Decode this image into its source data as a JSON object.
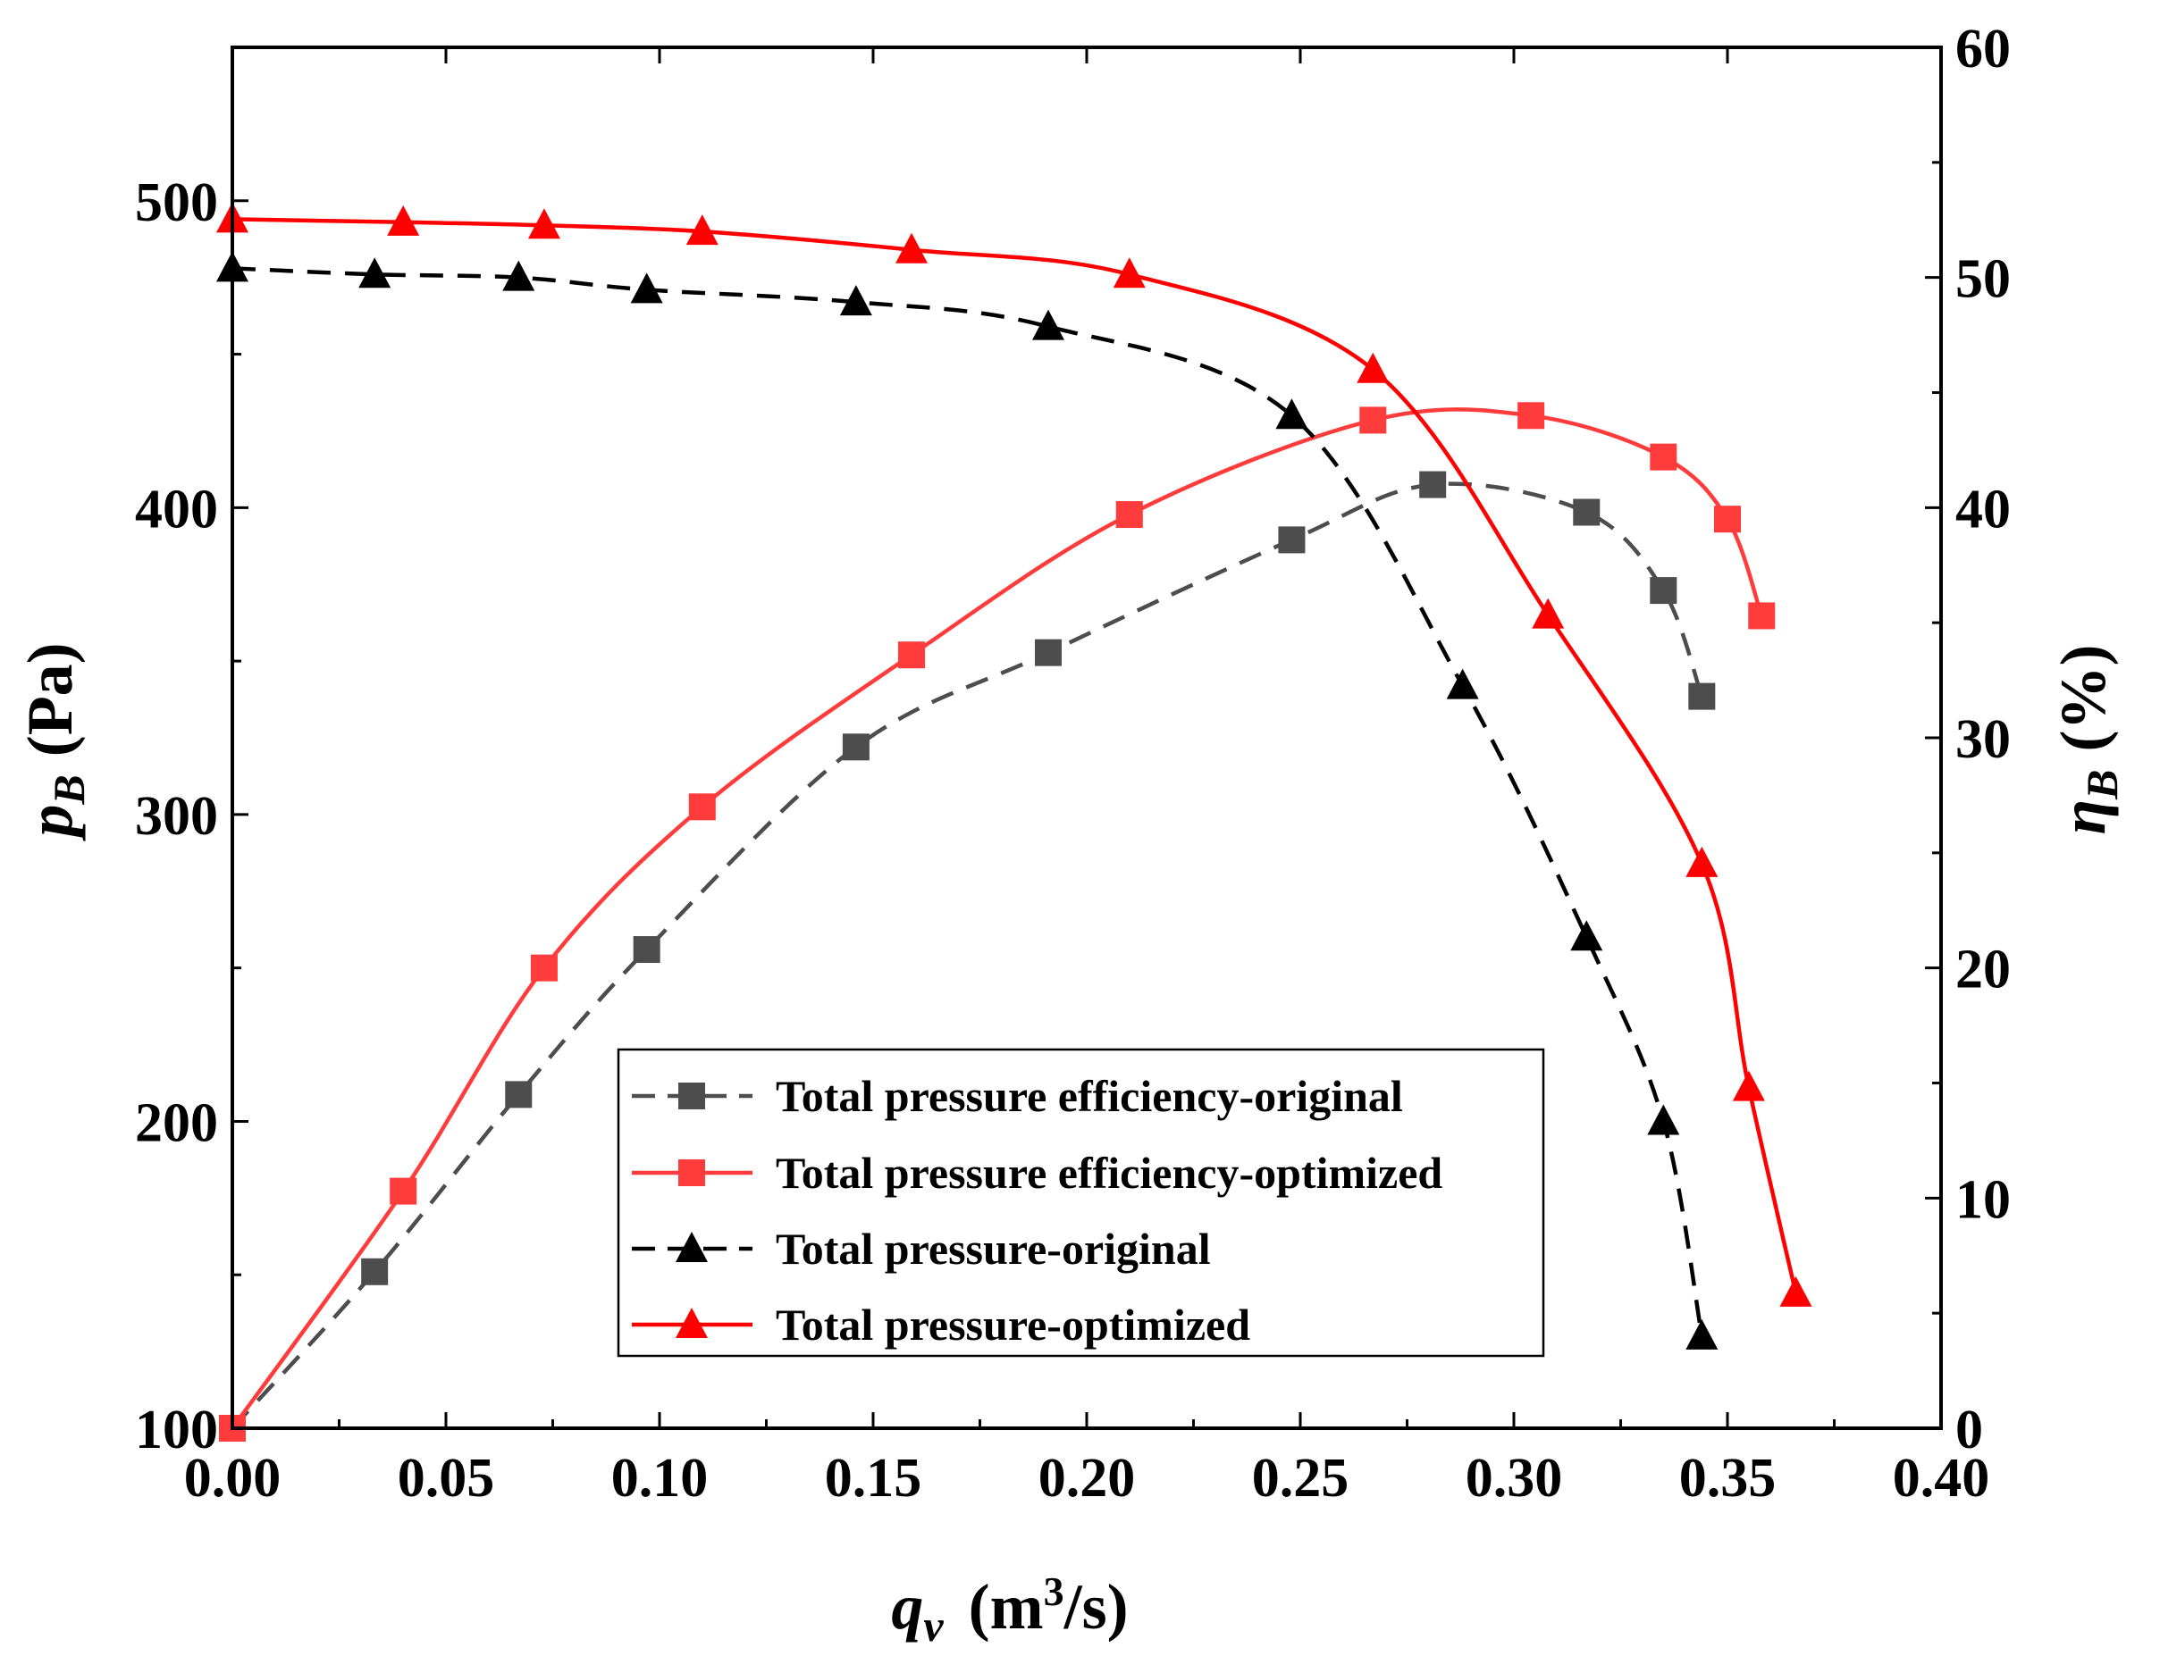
{
  "chart_data": {
    "type": "line",
    "x": [
      0.0,
      0.0333,
      0.04,
      0.067,
      0.073,
      0.097,
      0.11,
      0.146,
      0.159,
      0.191,
      0.21,
      0.248,
      0.267,
      0.281,
      0.288,
      0.304,
      0.308,
      0.317,
      0.335,
      0.344,
      0.35,
      0.355,
      0.358,
      0.366
    ],
    "xlabel": {
      "main": "q",
      "sub": "v",
      "unit_open": "(m",
      "unit_sup": "3",
      "unit_close": "/s)"
    },
    "xlim": [
      0.0,
      0.4
    ],
    "xticks": [
      "0.00",
      "0.05",
      "0.10",
      "0.15",
      "0.20",
      "0.25",
      "0.30",
      "0.35",
      "0.40"
    ],
    "ylabel_left": {
      "main": "p",
      "sub": "B",
      "unit": "(Pa)"
    },
    "ylim_left": [
      100,
      550
    ],
    "yticks_left": [
      "100",
      "200",
      "300",
      "400",
      "500"
    ],
    "ylabel_right": {
      "main": "η",
      "sub": "B",
      "unit": "(%)"
    },
    "ylim_right": [
      0,
      60
    ],
    "yticks_right": [
      "0",
      "10",
      "20",
      "30",
      "40",
      "50",
      "60"
    ],
    "grid": false,
    "legend_position": "bottom-center",
    "series": [
      {
        "name": "Total pressure efficiency-original",
        "axis": "right",
        "marker": "square",
        "line_style": "dashed",
        "color": "#4d4d4d",
        "points": [
          [
            0.0,
            0
          ],
          [
            0.0333,
            6.8
          ],
          [
            0.067,
            14.5
          ],
          [
            0.097,
            20.8
          ],
          [
            0.146,
            29.6
          ],
          [
            0.191,
            33.7
          ],
          [
            0.248,
            38.6
          ],
          [
            0.281,
            41.0
          ],
          [
            0.317,
            39.8
          ],
          [
            0.335,
            36.4
          ],
          [
            0.344,
            31.8
          ]
        ]
      },
      {
        "name": "Total pressure efficiency-optimized",
        "axis": "right",
        "marker": "square",
        "line_style": "solid",
        "color": "#ff3b3b",
        "points": [
          [
            0.0,
            0
          ],
          [
            0.04,
            10.3
          ],
          [
            0.073,
            20.0
          ],
          [
            0.11,
            27.0
          ],
          [
            0.159,
            33.6
          ],
          [
            0.21,
            39.7
          ],
          [
            0.267,
            43.8
          ],
          [
            0.304,
            44.0
          ],
          [
            0.335,
            42.2
          ],
          [
            0.35,
            39.5
          ],
          [
            0.358,
            35.3
          ]
        ]
      },
      {
        "name": "Total pressure-original",
        "axis": "left",
        "marker": "triangle",
        "line_style": "dashed",
        "color": "#000000",
        "points": [
          [
            0.0,
            478
          ],
          [
            0.0333,
            476
          ],
          [
            0.067,
            475
          ],
          [
            0.097,
            471
          ],
          [
            0.146,
            467
          ],
          [
            0.191,
            459
          ],
          [
            0.248,
            430
          ],
          [
            0.288,
            342
          ],
          [
            0.317,
            260
          ],
          [
            0.335,
            200
          ],
          [
            0.344,
            130
          ]
        ]
      },
      {
        "name": "Total pressure-optimized",
        "axis": "left",
        "marker": "triangle",
        "line_style": "solid",
        "color": "#ff0000",
        "points": [
          [
            0.0,
            494
          ],
          [
            0.04,
            493
          ],
          [
            0.073,
            492
          ],
          [
            0.11,
            490
          ],
          [
            0.159,
            484
          ],
          [
            0.21,
            476
          ],
          [
            0.267,
            445
          ],
          [
            0.308,
            365
          ],
          [
            0.344,
            284
          ],
          [
            0.355,
            211
          ],
          [
            0.366,
            144
          ]
        ]
      }
    ]
  }
}
